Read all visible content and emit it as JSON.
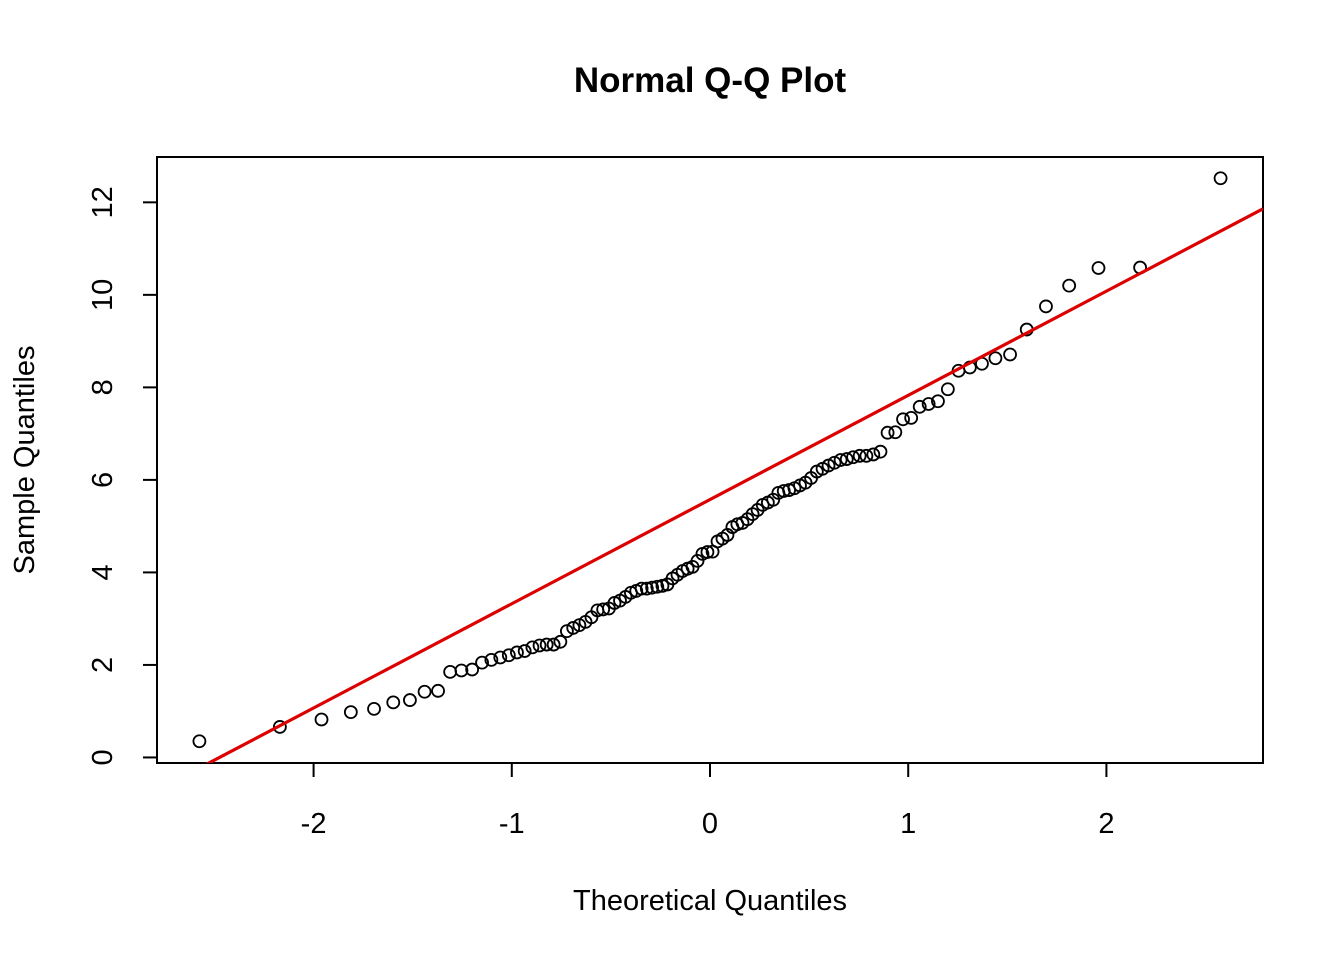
{
  "chart_data": {
    "type": "scatter",
    "title": "Normal Q-Q Plot",
    "xlabel": "Theoretical Quantiles",
    "ylabel": "Sample Quantiles",
    "xlim": [
      -2.79,
      2.79
    ],
    "ylim": [
      -0.12,
      12.98
    ],
    "x_ticks": [
      -2,
      -1,
      0,
      1,
      2
    ],
    "x_tick_labels": [
      "-2",
      "-1",
      "0",
      "1",
      "2"
    ],
    "y_ticks": [
      0,
      2,
      4,
      6,
      8,
      10,
      12
    ],
    "y_tick_labels": [
      "0",
      "2",
      "4",
      "6",
      "8",
      "10",
      "12"
    ],
    "grid": false,
    "legend": "none",
    "series": [
      {
        "kind": "points",
        "marker": "open-circle",
        "color": "#000000",
        "x": [
          -2.576,
          -2.17,
          -1.96,
          -1.812,
          -1.695,
          -1.598,
          -1.514,
          -1.44,
          -1.372,
          -1.311,
          -1.254,
          -1.2,
          -1.15,
          -1.103,
          -1.058,
          -1.015,
          -0.974,
          -0.935,
          -0.896,
          -0.86,
          -0.824,
          -0.789,
          -0.755,
          -0.722,
          -0.69,
          -0.659,
          -0.628,
          -0.598,
          -0.568,
          -0.539,
          -0.51,
          -0.482,
          -0.454,
          -0.426,
          -0.399,
          -0.372,
          -0.345,
          -0.319,
          -0.292,
          -0.266,
          -0.24,
          -0.215,
          -0.189,
          -0.164,
          -0.138,
          -0.113,
          -0.088,
          -0.063,
          -0.038,
          -0.013,
          0.013,
          0.038,
          0.063,
          0.088,
          0.113,
          0.138,
          0.164,
          0.189,
          0.215,
          0.24,
          0.266,
          0.292,
          0.319,
          0.345,
          0.372,
          0.399,
          0.426,
          0.454,
          0.482,
          0.51,
          0.539,
          0.568,
          0.598,
          0.628,
          0.659,
          0.69,
          0.722,
          0.755,
          0.789,
          0.824,
          0.86,
          0.896,
          0.935,
          0.974,
          1.015,
          1.058,
          1.103,
          1.15,
          1.2,
          1.254,
          1.311,
          1.372,
          1.44,
          1.514,
          1.598,
          1.695,
          1.812,
          1.96,
          2.17,
          2.576
        ],
        "y": [
          0.35,
          0.66,
          0.82,
          0.98,
          1.05,
          1.19,
          1.24,
          1.42,
          1.44,
          1.85,
          1.88,
          1.9,
          2.05,
          2.11,
          2.16,
          2.21,
          2.27,
          2.3,
          2.38,
          2.42,
          2.44,
          2.44,
          2.5,
          2.73,
          2.8,
          2.86,
          2.93,
          3.03,
          3.18,
          3.2,
          3.22,
          3.34,
          3.39,
          3.47,
          3.56,
          3.6,
          3.65,
          3.65,
          3.67,
          3.69,
          3.71,
          3.74,
          3.87,
          3.95,
          4.03,
          4.08,
          4.12,
          4.25,
          4.4,
          4.44,
          4.45,
          4.67,
          4.73,
          4.81,
          4.98,
          5.04,
          5.07,
          5.15,
          5.26,
          5.35,
          5.46,
          5.51,
          5.57,
          5.72,
          5.76,
          5.78,
          5.82,
          5.88,
          5.94,
          6.04,
          6.18,
          6.24,
          6.31,
          6.37,
          6.43,
          6.45,
          6.49,
          6.52,
          6.52,
          6.55,
          6.61,
          7.02,
          7.03,
          7.31,
          7.34,
          7.58,
          7.64,
          7.7,
          7.96,
          8.36,
          8.43,
          8.51,
          8.63,
          8.71,
          9.25,
          9.75,
          10.2,
          10.58,
          10.59,
          12.52
        ]
      },
      {
        "kind": "line",
        "name": "qqline",
        "color": "#dd0000",
        "x": [
          -2.79,
          2.79
        ],
        "y": [
          -0.71,
          11.86
        ]
      }
    ]
  }
}
